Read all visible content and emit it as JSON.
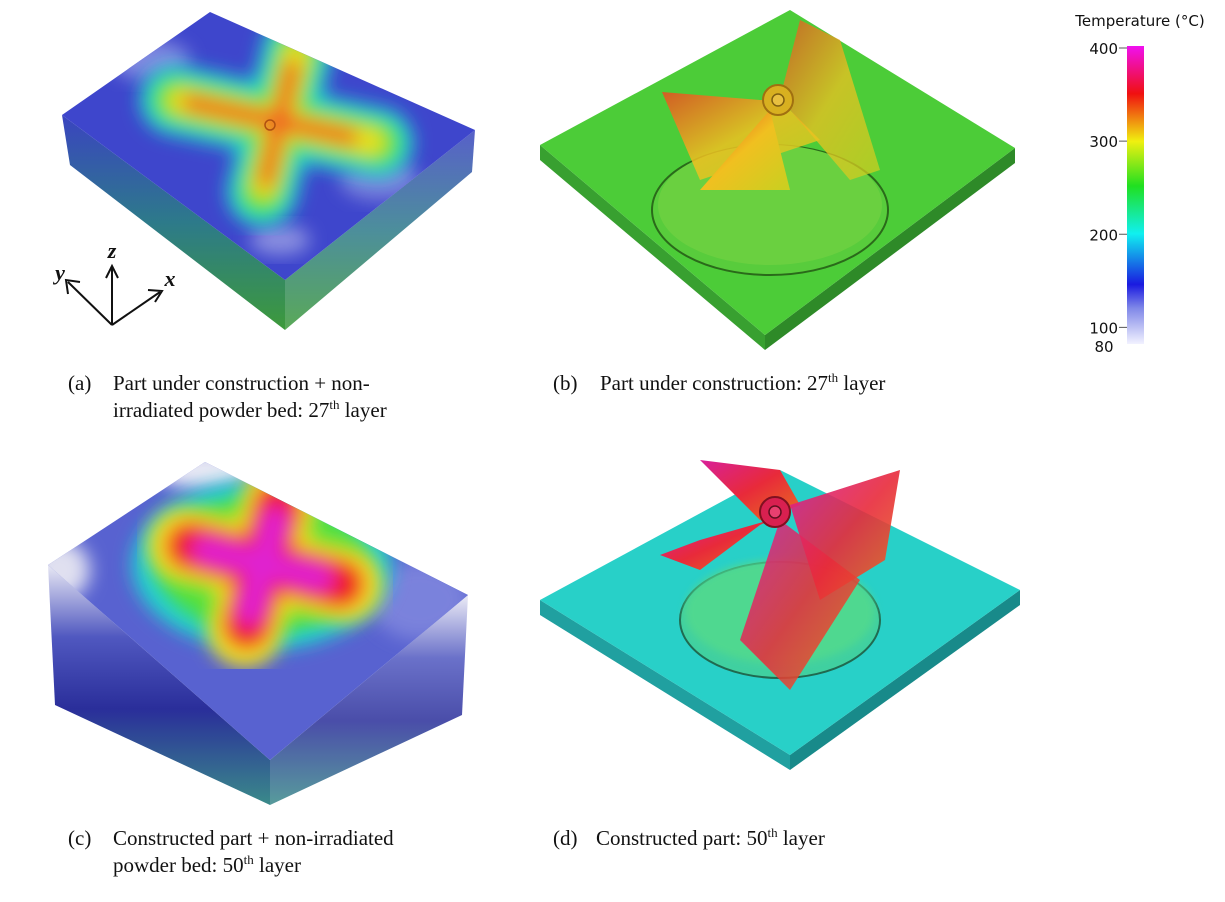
{
  "panels": [
    {
      "label": "(a)",
      "lines": [
        [
          {
            "text": "Part under construction + non-"
          }
        ],
        [
          {
            "text": "irradiated powder bed: 27"
          },
          {
            "text": "th",
            "superscript": true
          },
          {
            "text": " layer"
          }
        ]
      ]
    },
    {
      "label": "(b)",
      "lines": [
        [
          {
            "text": "Part under construction: 27"
          },
          {
            "text": "th",
            "superscript": true
          },
          {
            "text": " layer"
          }
        ]
      ]
    },
    {
      "label": "(c)",
      "lines": [
        [
          {
            "text": "Constructed part + non-irradiated"
          }
        ],
        [
          {
            "text": "powder bed: 50"
          },
          {
            "text": "th",
            "superscript": true
          },
          {
            "text": " layer"
          }
        ]
      ]
    },
    {
      "label": "(d)",
      "lines": [
        [
          {
            "text": "Constructed part: 50"
          },
          {
            "text": "th",
            "superscript": true
          },
          {
            "text": " layer"
          }
        ]
      ]
    }
  ],
  "axes": {
    "z": "z",
    "y": "y",
    "x": "x"
  },
  "colorbar": {
    "title": "Temperature (°C)",
    "range": [
      80,
      400
    ],
    "ticks": [
      400,
      300,
      200,
      100,
      80
    ]
  }
}
